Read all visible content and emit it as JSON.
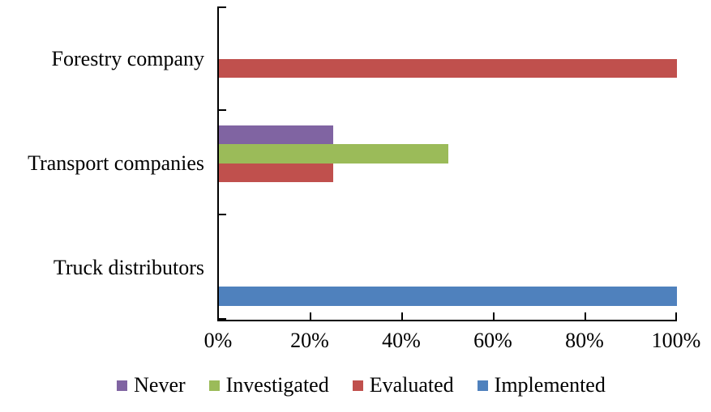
{
  "chart_data": {
    "type": "bar",
    "orientation": "horizontal",
    "title": "",
    "categories": [
      "Forestry company",
      "Transport companies",
      "Truck distributors"
    ],
    "series": [
      {
        "name": "Never",
        "color": "#8064A2",
        "values": [
          0,
          25,
          0
        ]
      },
      {
        "name": "Investigated",
        "color": "#9BBB59",
        "values": [
          0,
          50,
          0
        ]
      },
      {
        "name": "Evaluated",
        "color": "#C0504D",
        "values": [
          100,
          25,
          0
        ]
      },
      {
        "name": "Implemented",
        "color": "#4F81BD",
        "values": [
          0,
          0,
          100
        ]
      }
    ],
    "xlabel": "",
    "ylabel": "",
    "xlim": [
      0,
      100
    ],
    "x_tick_labels": [
      "0%",
      "20%",
      "40%",
      "60%",
      "80%",
      "100%"
    ],
    "value_unit": "percent",
    "grid": false,
    "legend_position": "bottom",
    "axis_color": "#000000",
    "background_color": "#ffffff"
  }
}
